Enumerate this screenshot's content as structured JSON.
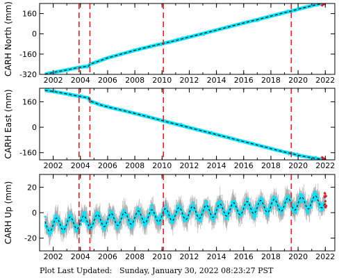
{
  "footer": {
    "label": "Plot Last Updated:",
    "timestamp": "Sunday, January 30, 2022 08:23:27 PST"
  },
  "colors": {
    "data": "#00e5ff",
    "errorbar": "#a9a9a9",
    "model": "#000000",
    "event_line": "#e8191f",
    "recent": "#e8191f"
  },
  "chart_data": [
    {
      "type": "scatter",
      "ylabel": "CARH North (mm)",
      "xlim": [
        2001.0,
        2022.7
      ],
      "ylim": [
        -320,
        240
      ],
      "yticks": [
        -320,
        -160,
        0,
        160
      ],
      "xticks": [
        2002,
        2004,
        2006,
        2008,
        2010,
        2012,
        2014,
        2016,
        2018,
        2020,
        2022
      ],
      "event_lines_year": [
        2003.9,
        2004.7,
        2010.1,
        2019.5
      ],
      "series": [
        {
          "x": [
            2001.4,
            2002.0,
            2003.0,
            2003.9,
            2004.6,
            2004.7,
            2005.5,
            2006.0,
            2007.0,
            2008.0,
            2009.0,
            2010.0,
            2011.0,
            2012.0,
            2013.0,
            2014.0,
            2015.0,
            2016.0,
            2017.0,
            2018.0,
            2019.0,
            2019.5,
            2020.0,
            2021.0,
            2022.0
          ],
          "values": [
            -318,
            -305,
            -285,
            -265,
            -255,
            -240,
            -210,
            -190,
            -160,
            -130,
            -103,
            -78,
            -53,
            -25,
            2,
            30,
            58,
            86,
            112,
            140,
            168,
            180,
            195,
            222,
            245
          ]
        }
      ]
    },
    {
      "type": "scatter",
      "ylabel": "CARH East (mm)",
      "xlim": [
        2001.0,
        2022.7
      ],
      "ylim": [
        -205,
        245
      ],
      "yticks": [
        -160,
        0,
        160
      ],
      "xticks": [
        2002,
        2004,
        2006,
        2008,
        2010,
        2012,
        2014,
        2016,
        2018,
        2020,
        2022
      ],
      "event_lines_year": [
        2003.9,
        2004.7,
        2010.1,
        2019.5
      ],
      "series": [
        {
          "x": [
            2001.4,
            2002.0,
            2003.0,
            2003.9,
            2004.6,
            2004.7,
            2005.5,
            2006.0,
            2007.0,
            2008.0,
            2009.0,
            2010.0,
            2011.0,
            2012.0,
            2013.0,
            2014.0,
            2015.0,
            2016.0,
            2017.0,
            2018.0,
            2019.0,
            2019.5,
            2020.0,
            2021.0,
            2022.0
          ],
          "values": [
            232,
            225,
            210,
            195,
            184,
            165,
            140,
            128,
            108,
            87,
            65,
            42,
            20,
            -2,
            -24,
            -46,
            -68,
            -90,
            -112,
            -134,
            -156,
            -165,
            -176,
            -192,
            -205
          ]
        }
      ]
    },
    {
      "type": "scatter",
      "ylabel": "CARH Up (mm)",
      "xlim": [
        2001.0,
        2022.7
      ],
      "ylim": [
        -30,
        30
      ],
      "yticks": [
        -20,
        0,
        20
      ],
      "xticks": [
        2002,
        2004,
        2006,
        2008,
        2010,
        2012,
        2014,
        2016,
        2018,
        2020,
        2022
      ],
      "event_lines_year": [
        2003.9,
        2004.7,
        2010.1,
        2019.5
      ],
      "series": [
        {
          "model_trend": [
            -10.0,
            9.0
          ],
          "x_range": [
            2001.4,
            2022.0
          ],
          "annual_amplitude": 5,
          "scatter_spread": 9,
          "error_spread": 14
        }
      ]
    }
  ]
}
